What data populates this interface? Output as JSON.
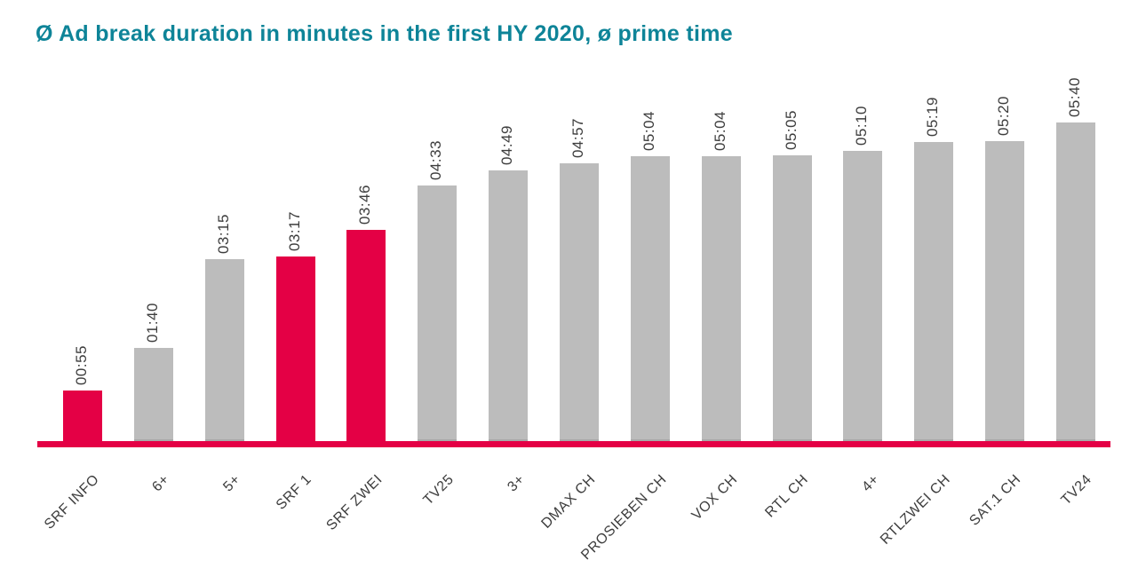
{
  "header": {
    "title": "Ø Ad break duration in minutes in the first HY 2020, ø prime time"
  },
  "colors": {
    "accent_red": "#e40045",
    "bar_gray": "#bcbcbc",
    "title_teal": "#0e8498",
    "label_text": "#3d3d3d",
    "baseline": "#e40045"
  },
  "chart_data": {
    "type": "bar",
    "title": "Ø Ad break duration in minutes in the first HY 2020, ø prime time",
    "categories": [
      "SRF INFO",
      "6+",
      "5+",
      "SRF 1",
      "SRF ZWEI",
      "TV25",
      "3+",
      "DMAX CH",
      "PROSIEBEN CH",
      "VOX CH",
      "RTL CH",
      "4+",
      "RTLZWEI CH",
      "SAT.1 CH",
      "TV24"
    ],
    "value_labels": [
      "00:55",
      "01:40",
      "03:15",
      "03:17",
      "03:46",
      "04:33",
      "04:49",
      "04:57",
      "05:04",
      "05:04",
      "05:05",
      "05:10",
      "05:19",
      "05:20",
      "05:40"
    ],
    "values_seconds": [
      55,
      100,
      195,
      197,
      226,
      273,
      289,
      297,
      304,
      304,
      305,
      310,
      319,
      320,
      340
    ],
    "highlight_indexes": [
      0,
      3,
      4
    ],
    "highlight_color": "#e40045",
    "default_color": "#bcbcbc",
    "xlabel": "",
    "ylabel": "",
    "ylim_seconds": [
      0,
      360
    ],
    "gridlines": false,
    "legend": "none",
    "value_label_rotation_deg": 90,
    "category_label_rotation_deg": 45,
    "baseline_color": "#e40045"
  }
}
